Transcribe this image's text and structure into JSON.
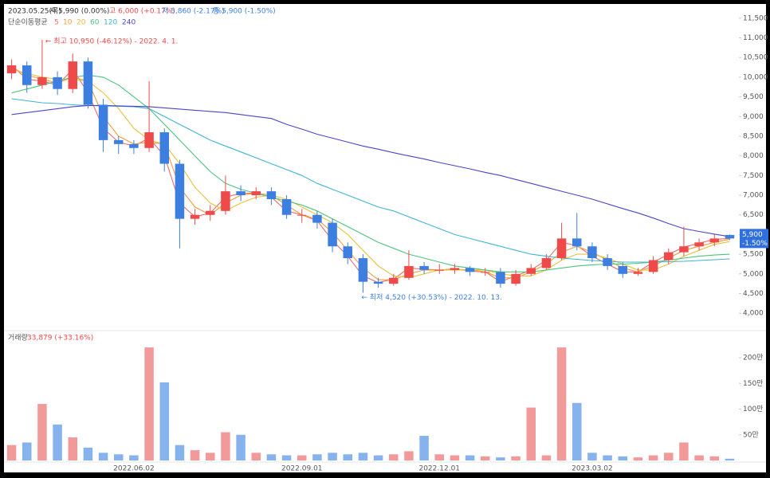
{
  "header": {
    "date": "2023.05.25(목)",
    "open": "시 5,990 (0.00%)",
    "high": "고 6,000 (+0.17%)",
    "low": "저 5,860 (-2.17%)",
    "close": "종 5,900 (-1.50%)"
  },
  "chart_data": [
    {
      "type": "candlestick",
      "categories": [
        null,
        null,
        null,
        null,
        null,
        null,
        null,
        null,
        "2022.06.02",
        null,
        null,
        null,
        null,
        null,
        null,
        null,
        null,
        null,
        null,
        "2022.09.01",
        null,
        null,
        null,
        null,
        null,
        null,
        null,
        null,
        "2022.12.01",
        null,
        null,
        null,
        null,
        null,
        null,
        null,
        null,
        null,
        "2023.03.02",
        null,
        null,
        null,
        null,
        null,
        null,
        null,
        null,
        null
      ],
      "open": [
        10100,
        10300,
        9800,
        10000,
        9700,
        10400,
        9300,
        8400,
        8300,
        8200,
        8600,
        7800,
        6400,
        6500,
        6600,
        7100,
        7000,
        7100,
        6900,
        6500,
        6500,
        6300,
        5700,
        5400,
        4800,
        4750,
        4900,
        5200,
        5100,
        5100,
        5150,
        5050,
        5050,
        4750,
        5000,
        5150,
        5400,
        5900,
        5700,
        5400,
        5200,
        5000,
        5050,
        5350,
        5550,
        5700,
        5800,
        5990
      ],
      "high": [
        10450,
        10400,
        10950,
        10150,
        10600,
        10500,
        9450,
        8500,
        8400,
        9900,
        8700,
        7900,
        6650,
        6750,
        7500,
        7250,
        7200,
        7200,
        7000,
        6650,
        6600,
        6400,
        5800,
        5500,
        4900,
        5000,
        5600,
        5300,
        5250,
        5250,
        5200,
        5150,
        5150,
        5100,
        5250,
        5500,
        6300,
        6550,
        5800,
        5500,
        5300,
        5150,
        5450,
        5650,
        6200,
        5900,
        6000,
        6000
      ],
      "low": [
        9950,
        9600,
        9700,
        9550,
        9600,
        9200,
        8100,
        8050,
        8050,
        8100,
        7600,
        5650,
        6250,
        6350,
        6500,
        6850,
        6900,
        6750,
        6400,
        6300,
        6150,
        5550,
        5250,
        4520,
        4650,
        4700,
        4850,
        5000,
        5000,
        5000,
        4950,
        4950,
        4650,
        4700,
        4950,
        5100,
        5350,
        5600,
        5300,
        5100,
        4900,
        4950,
        5000,
        5250,
        5450,
        5600,
        5700,
        5860
      ],
      "close": [
        10300,
        9800,
        10000,
        9700,
        10400,
        9300,
        8400,
        8300,
        8200,
        8600,
        7800,
        6400,
        6500,
        6600,
        7100,
        7000,
        7100,
        6900,
        6500,
        6500,
        6300,
        5700,
        5400,
        4800,
        4750,
        4900,
        5200,
        5100,
        5100,
        5150,
        5050,
        5050,
        4750,
        5000,
        5150,
        5400,
        5900,
        5700,
        5400,
        5200,
        5000,
        5050,
        5350,
        5550,
        5700,
        5800,
        5900,
        5900
      ],
      "up_color": "#ee4a4a",
      "down_color": "#3d7fe0",
      "legend_title": "단순이동평균",
      "series": [
        {
          "name": "5",
          "color": "#f06a6a",
          "values": [
            10300,
            9950,
            9900,
            9800,
            10200,
            9600,
            8700,
            8350,
            8250,
            8450,
            8000,
            6800,
            6450,
            6550,
            6950,
            7050,
            7050,
            6950,
            6600,
            6500,
            6350,
            5850,
            5450,
            4950,
            4780,
            4870,
            5150,
            5120,
            5100,
            5130,
            5070,
            5050,
            4800,
            4950,
            5100,
            5350,
            5800,
            5720,
            5450,
            5250,
            5050,
            5050,
            5300,
            5500,
            5680,
            5780,
            5880,
            5900
          ]
        },
        {
          "name": "10",
          "color": "#f39c3a",
          "values": [
            10250,
            10050,
            9950,
            9850,
            10000,
            9900,
            9000,
            8500,
            8300,
            8350,
            8300,
            7200,
            6700,
            6500,
            6800,
            7000,
            7050,
            7000,
            6750,
            6500,
            6400,
            6050,
            5600,
            5150,
            4850,
            4850,
            5000,
            5100,
            5100,
            5120,
            5100,
            5050,
            4900,
            4900,
            5050,
            5250,
            5550,
            5700,
            5550,
            5350,
            5150,
            5050,
            5200,
            5400,
            5600,
            5700,
            5800,
            5880
          ]
        },
        {
          "name": "20",
          "color": "#e8c23a",
          "values": [
            10200,
            10100,
            10000,
            9950,
            9950,
            9900,
            9600,
            9200,
            8700,
            8400,
            8300,
            7800,
            7200,
            6800,
            6600,
            6800,
            6950,
            7000,
            6900,
            6700,
            6500,
            6300,
            6000,
            5600,
            5200,
            4950,
            4900,
            5000,
            5100,
            5100,
            5100,
            5100,
            5000,
            4950,
            4950,
            5100,
            5350,
            5500,
            5500,
            5400,
            5250,
            5100,
            5100,
            5250,
            5450,
            5600,
            5750,
            5820
          ]
        },
        {
          "name": "60",
          "color": "#4cc47e",
          "values": [
            9600,
            9700,
            9800,
            9900,
            10000,
            10050,
            10000,
            9800,
            9500,
            9200,
            8800,
            8400,
            8000,
            7600,
            7300,
            7150,
            7050,
            6950,
            6850,
            6750,
            6600,
            6400,
            6200,
            6000,
            5800,
            5650,
            5500,
            5400,
            5300,
            5200,
            5150,
            5100,
            5050,
            5050,
            5050,
            5100,
            5150,
            5200,
            5230,
            5250,
            5250,
            5270,
            5300,
            5350,
            5400,
            5450,
            5480,
            5500
          ]
        },
        {
          "name": "120",
          "color": "#3fb6d2",
          "values": [
            9450,
            9400,
            9350,
            9330,
            9300,
            9280,
            9270,
            9260,
            9250,
            9200,
            9000,
            8800,
            8600,
            8400,
            8250,
            8100,
            7950,
            7800,
            7650,
            7500,
            7300,
            7150,
            7000,
            6850,
            6700,
            6600,
            6450,
            6300,
            6150,
            6000,
            5900,
            5800,
            5700,
            5600,
            5500,
            5450,
            5400,
            5370,
            5340,
            5320,
            5300,
            5300,
            5300,
            5310,
            5320,
            5340,
            5360,
            5380
          ]
        },
        {
          "name": "240",
          "color": "#4b45c8",
          "values": [
            9050,
            9100,
            9150,
            9200,
            9250,
            9280,
            9280,
            9270,
            9260,
            9250,
            9220,
            9190,
            9160,
            9130,
            9100,
            9050,
            9000,
            8950,
            8800,
            8680,
            8550,
            8450,
            8350,
            8250,
            8170,
            8080,
            8000,
            7920,
            7830,
            7750,
            7670,
            7580,
            7500,
            7400,
            7300,
            7200,
            7100,
            7000,
            6900,
            6780,
            6660,
            6550,
            6420,
            6280,
            6150,
            6080,
            6010,
            5950
          ]
        }
      ],
      "ylim": [
        3700,
        11800
      ],
      "yticks": [
        {
          "value": 4000,
          "label": "4,000"
        },
        {
          "value": 4500,
          "label": "4,500"
        },
        {
          "value": 5000,
          "label": "5,000"
        },
        {
          "value": 5500,
          "label": "5,500"
        },
        {
          "value": 6000,
          "label": "6,000"
        },
        {
          "value": 6500,
          "label": "6,500"
        },
        {
          "value": 7000,
          "label": "7,000"
        },
        {
          "value": 7500,
          "label": "7,500"
        },
        {
          "value": 8000,
          "label": "8,000"
        },
        {
          "value": 8500,
          "label": "8,500"
        },
        {
          "value": 9000,
          "label": "9,000"
        },
        {
          "value": 9500,
          "label": "9,500"
        },
        {
          "value": 10000,
          "label": "10,000"
        },
        {
          "value": 10500,
          "label": "10,500"
        },
        {
          "value": 11000,
          "label": "11,000"
        },
        {
          "value": 11500,
          "label": "11,500"
        }
      ],
      "annotations": [
        {
          "text": "← 최고 10,950 (-46.12%) - 2022. 4. 1.",
          "color": "#ee4a4a"
        },
        {
          "text": "← 최저 4,520 (+30.53%) - 2022. 10. 13.",
          "color": "#3d7fe0"
        }
      ],
      "last_price_label": "5,900",
      "last_change_label": "-1.50%",
      "last_color": "#2f6fe0"
    },
    {
      "type": "bar",
      "title": "거래량",
      "subtitle": "33,879 (+33.16%)",
      "values": [
        300000,
        350000,
        1100000,
        700000,
        450000,
        250000,
        150000,
        120000,
        100000,
        2200000,
        1520000,
        300000,
        200000,
        150000,
        550000,
        500000,
        150000,
        120000,
        100000,
        100000,
        120000,
        150000,
        120000,
        150000,
        100000,
        120000,
        180000,
        480000,
        120000,
        100000,
        100000,
        80000,
        60000,
        80000,
        1030000,
        100000,
        2200000,
        1120000,
        150000,
        100000,
        80000,
        60000,
        100000,
        150000,
        350000,
        100000,
        80000,
        33879
      ],
      "up_color": "#f29a9a",
      "down_color": "#86b3ee",
      "ylim": [
        0,
        2450000
      ],
      "yticks": [
        {
          "value": 500000,
          "label": "50만"
        },
        {
          "value": 1000000,
          "label": "100만"
        },
        {
          "value": 1500000,
          "label": "150만"
        },
        {
          "value": 2000000,
          "label": "200만"
        }
      ]
    }
  ]
}
